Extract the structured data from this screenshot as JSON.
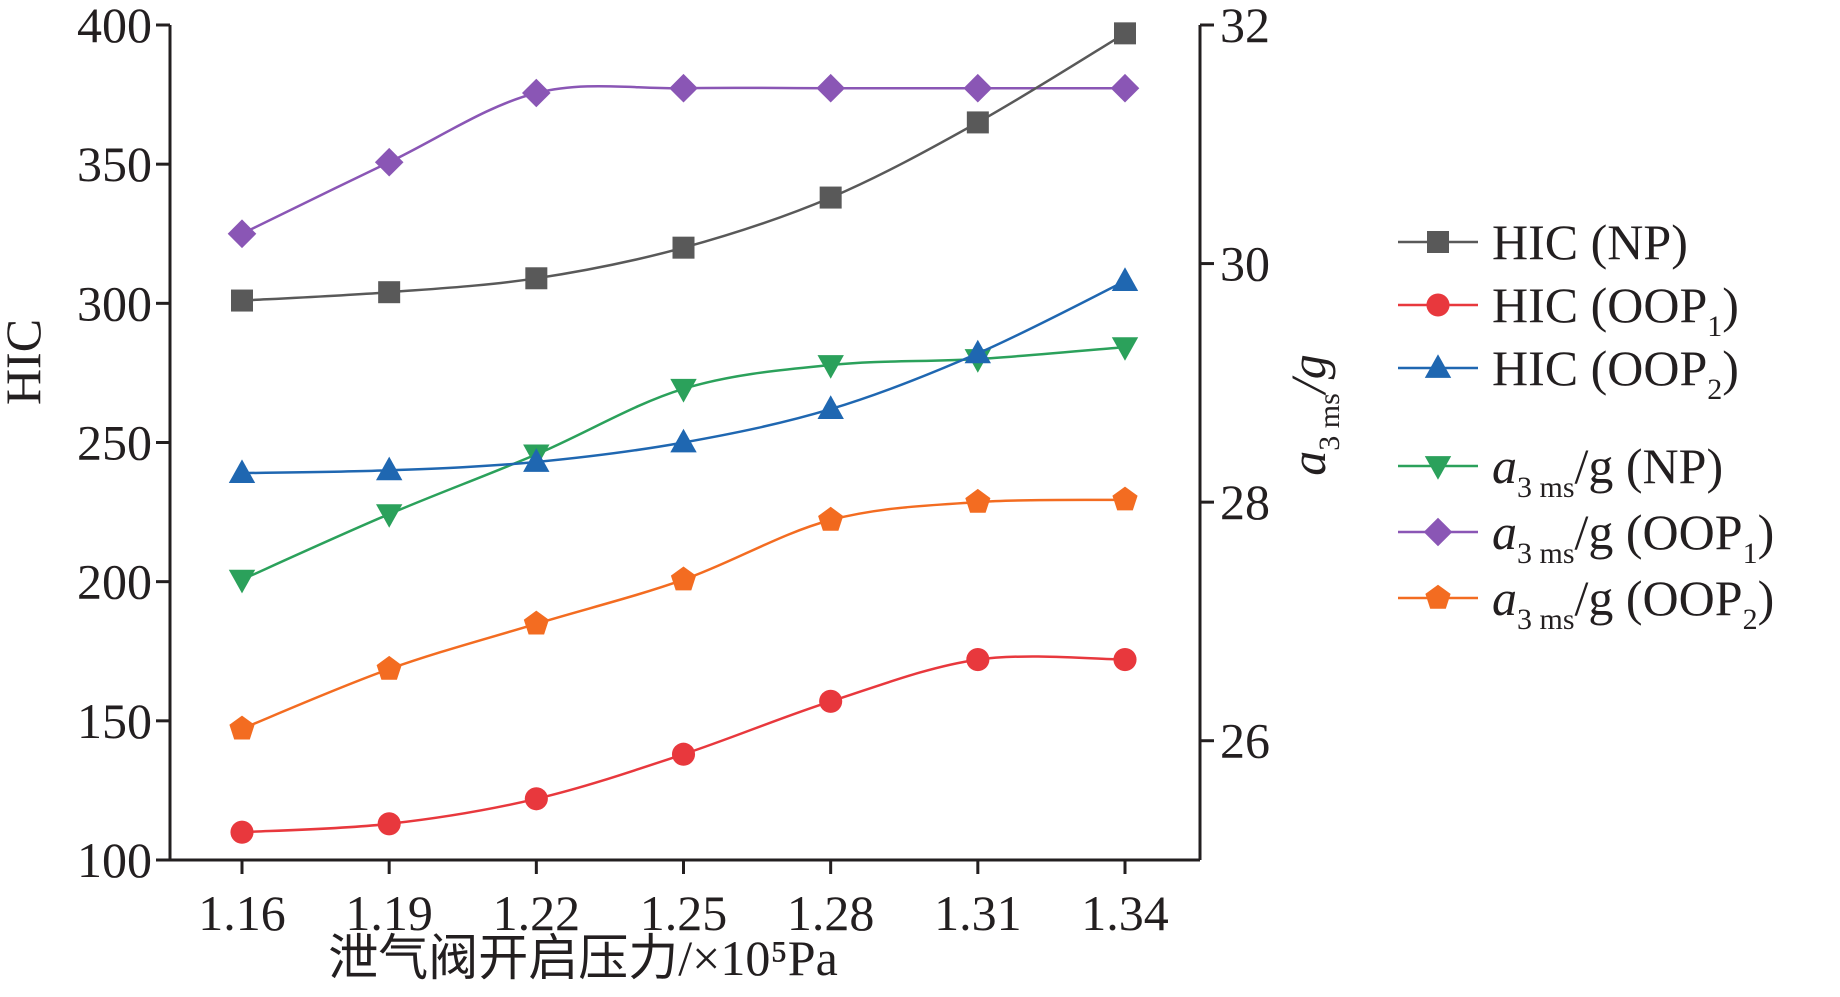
{
  "chart_data": {
    "type": "line",
    "x": [
      1.16,
      1.19,
      1.22,
      1.25,
      1.28,
      1.31,
      1.34
    ],
    "x_tick_labels": [
      "1.16",
      "1.19",
      "1.22",
      "1.25",
      "1.28",
      "1.31",
      "1.34"
    ],
    "xlabel": "泄气阀开启压力/×10⁵Pa",
    "ylabel_left": "HIC",
    "ylabel_right": {
      "main": "a",
      "subscript": "3 ms",
      "suffix": "/g"
    },
    "ylim_left": [
      100,
      400
    ],
    "ylim_right": [
      25,
      32
    ],
    "y_ticks_left": [
      "100",
      "150",
      "200",
      "250",
      "300",
      "350",
      "400"
    ],
    "y_ticks_right": [
      "26",
      "28",
      "30",
      "32"
    ],
    "grid": false,
    "legend_position": "right",
    "series": [
      {
        "name": "HIC (NP)",
        "legend": {
          "pre": "",
          "sub1": "",
          "mid": "HIC (NP",
          "sub2": "",
          "post": ")"
        },
        "axis": "left",
        "color": "#595959",
        "marker": "square",
        "values": [
          301,
          304,
          309,
          320,
          338,
          365,
          397
        ]
      },
      {
        "name": "HIC (OOP1)",
        "legend": {
          "pre": "",
          "sub1": "",
          "mid": "HIC (OOP",
          "sub2": "1",
          "post": ")"
        },
        "axis": "left",
        "color": "#e8383d",
        "marker": "circle",
        "values": [
          110,
          113,
          122,
          138,
          157,
          172,
          172
        ]
      },
      {
        "name": "HIC (OOP2)",
        "legend": {
          "pre": "",
          "sub1": "",
          "mid": "HIC (OOP",
          "sub2": "2",
          "post": ")"
        },
        "axis": "left",
        "color": "#1f67b1",
        "marker": "triangle-up",
        "values": [
          239,
          240,
          243,
          250,
          262,
          282,
          308
        ]
      },
      {
        "name": "a3 ms/g (NP)",
        "legend": {
          "pre": "a",
          "sub1": "3 ms",
          "mid": "/g (NP",
          "sub2": "",
          "post": ")"
        },
        "axis": "right",
        "color": "#2ba15b",
        "marker": "triangle-down",
        "values": [
          27.35,
          27.9,
          28.4,
          28.95,
          29.15,
          29.2,
          29.3
        ]
      },
      {
        "name": "a3 ms/g (OOP1)",
        "legend": {
          "pre": "a",
          "sub1": "3 ms",
          "mid": "/g (OOP",
          "sub2": "1",
          "post": ")"
        },
        "axis": "right",
        "color": "#8a56b5",
        "marker": "diamond",
        "values": [
          30.25,
          30.85,
          31.43,
          31.47,
          31.47,
          31.47,
          31.47
        ]
      },
      {
        "name": "a3 ms/g (OOP2)",
        "legend": {
          "pre": "a",
          "sub1": "3 ms",
          "mid": "/g (OOP",
          "sub2": "2",
          "post": ")"
        },
        "axis": "right",
        "color": "#f36c21",
        "marker": "pentagon",
        "values": [
          26.1,
          26.6,
          26.98,
          27.35,
          27.85,
          28.0,
          28.02
        ]
      }
    ]
  }
}
